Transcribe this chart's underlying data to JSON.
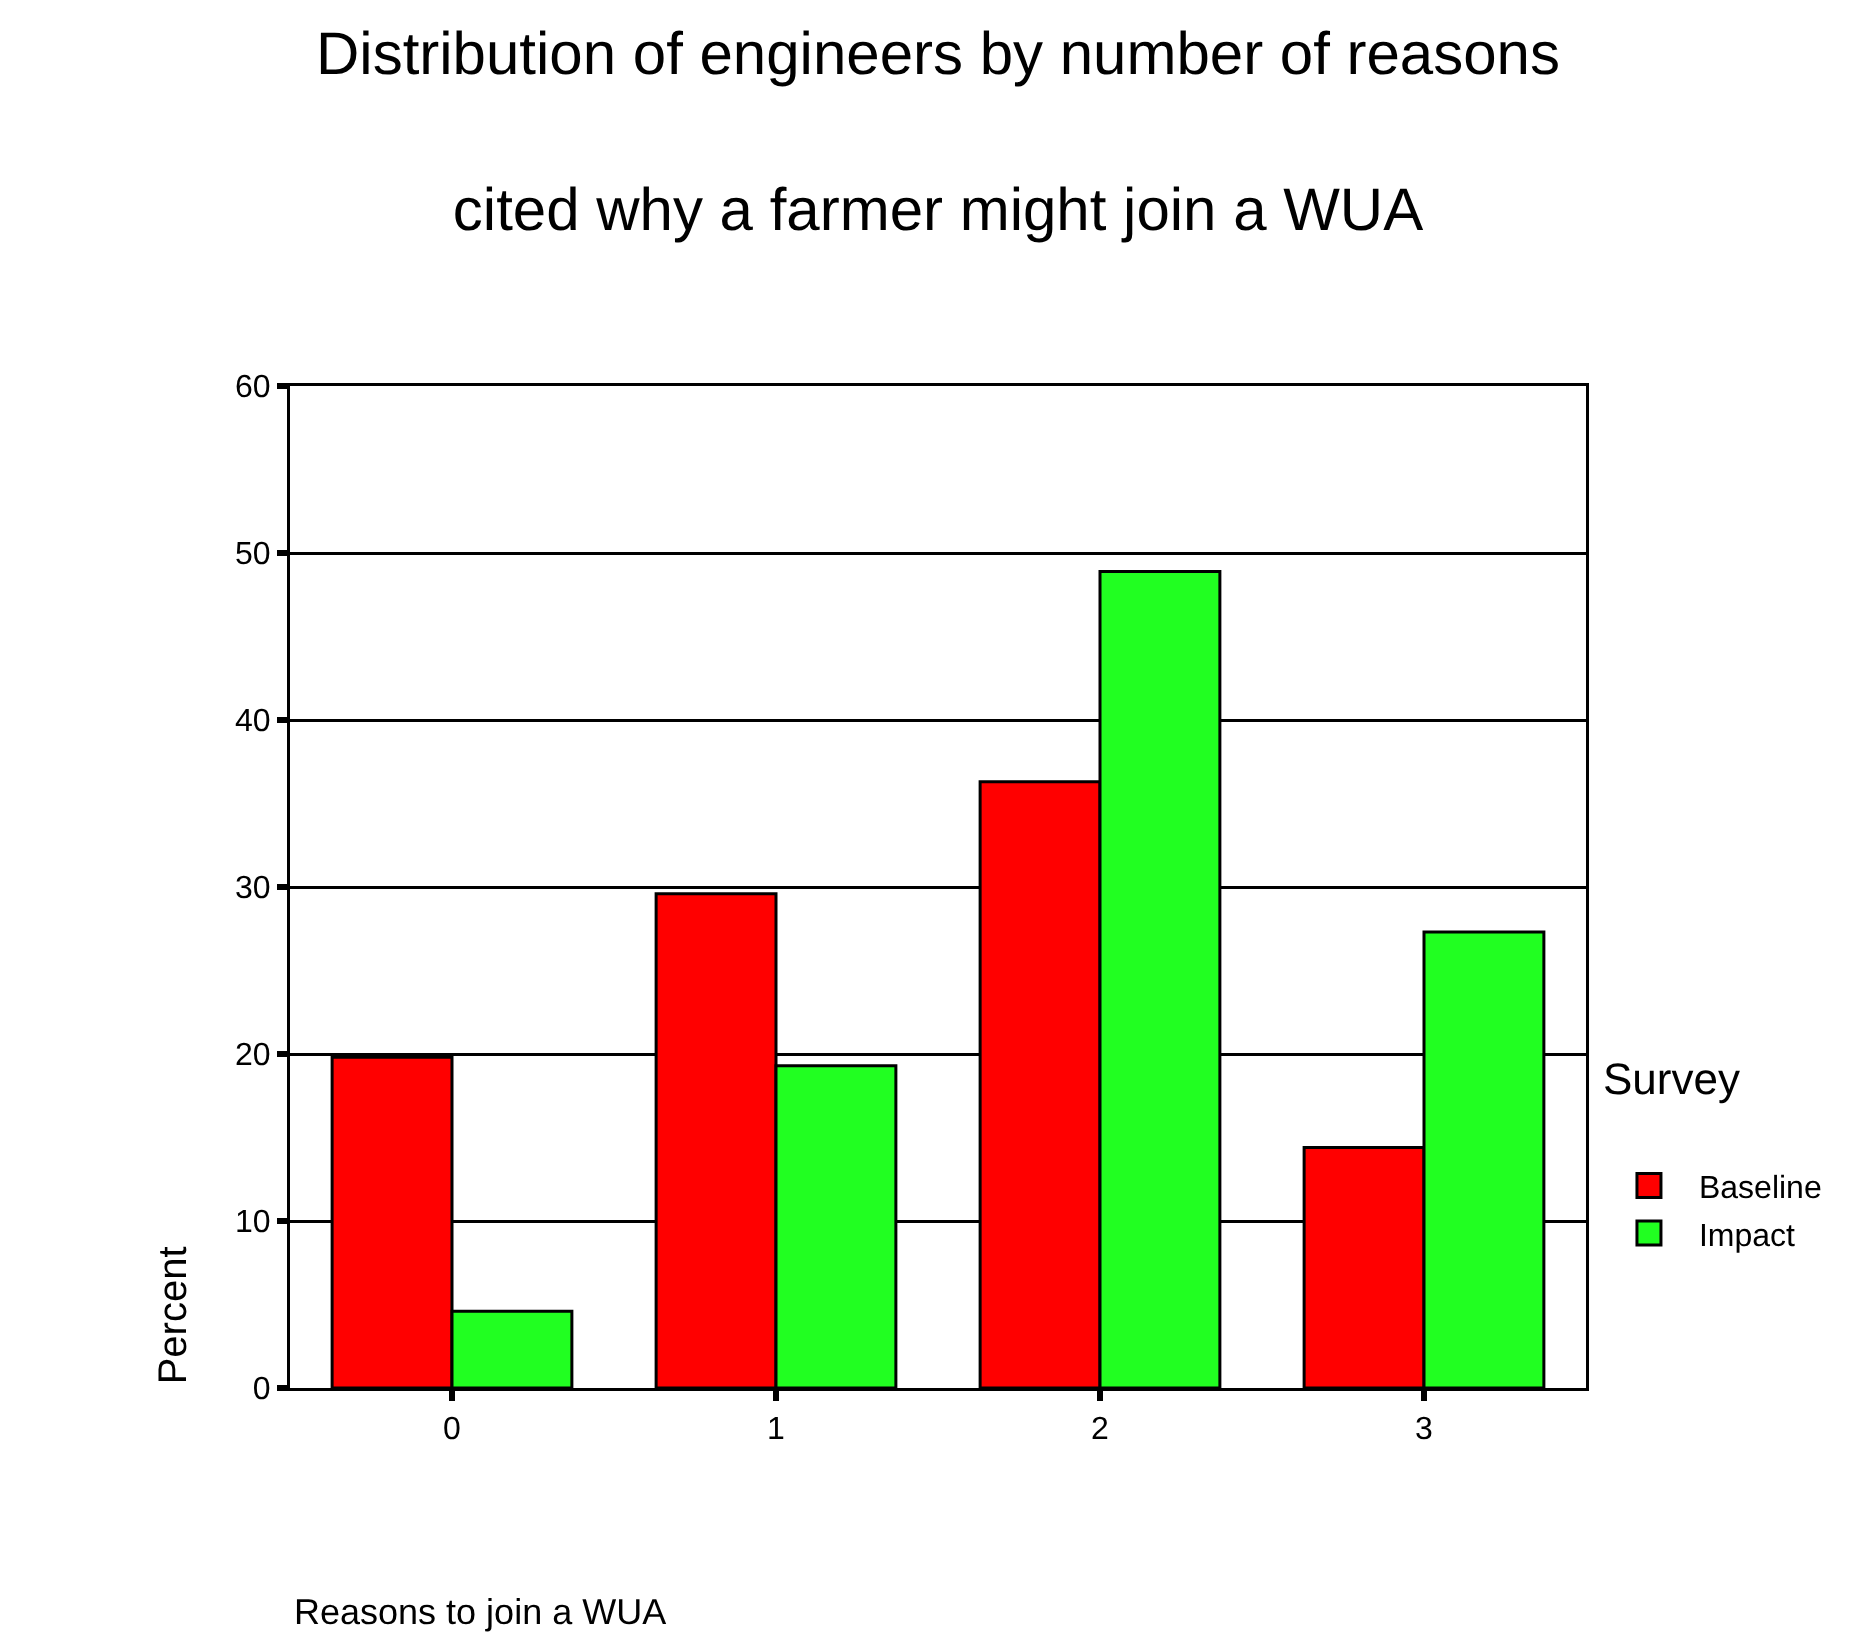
{
  "chart_data": {
    "type": "bar",
    "title": "Distribution of engineers by number of reasons\ncited why a farmer might join a WUA",
    "xlabel": "Reasons to join a WUA",
    "ylabel": "Percent",
    "legend_title": "Survey",
    "categories": [
      "0",
      "1",
      "2",
      "3"
    ],
    "series": [
      {
        "name": "Baseline",
        "color": "#ff0000",
        "values": [
          19.8,
          29.6,
          36.3,
          14.4
        ]
      },
      {
        "name": "Impact",
        "color": "#21ff21",
        "values": [
          4.6,
          19.3,
          48.9,
          27.3
        ]
      }
    ],
    "ylim": [
      0,
      60
    ],
    "yticks": [
      0,
      10,
      20,
      30,
      40,
      50,
      60
    ],
    "grid": "y",
    "legend": "right"
  }
}
